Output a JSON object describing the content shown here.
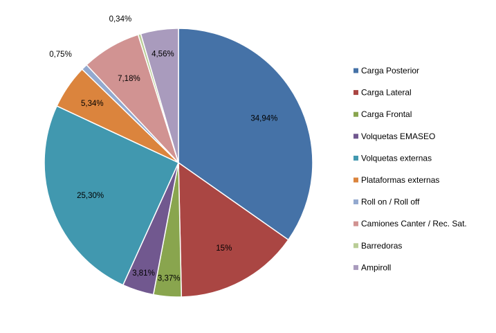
{
  "chart_data": {
    "type": "pie",
    "title": "",
    "legend_position": "right",
    "categories": [
      "Carga Posterior",
      "Carga Lateral",
      "Carga Frontal",
      "Volquetas EMASEO",
      "Volquetas externas",
      "Plataformas externas",
      "Roll on / Roll off",
      "Camiones Canter / Rec. Sat.",
      "Barredoras",
      "Ampiroll"
    ],
    "values": [
      34.94,
      15.0,
      3.37,
      3.81,
      25.3,
      5.34,
      0.75,
      7.18,
      0.34,
      4.56
    ],
    "data_labels": [
      "34,94%",
      "15%",
      "3,37%",
      "3,81%",
      "25,30%",
      "5,34%",
      "0,75%",
      "7,18%",
      "0,34%",
      "4,56%"
    ],
    "colors": [
      "#4572A7",
      "#AA4643",
      "#89A54E",
      "#71588F",
      "#4198AF",
      "#DB843D",
      "#93A9CF",
      "#D19392",
      "#B9CD96",
      "#A99BBD"
    ]
  }
}
